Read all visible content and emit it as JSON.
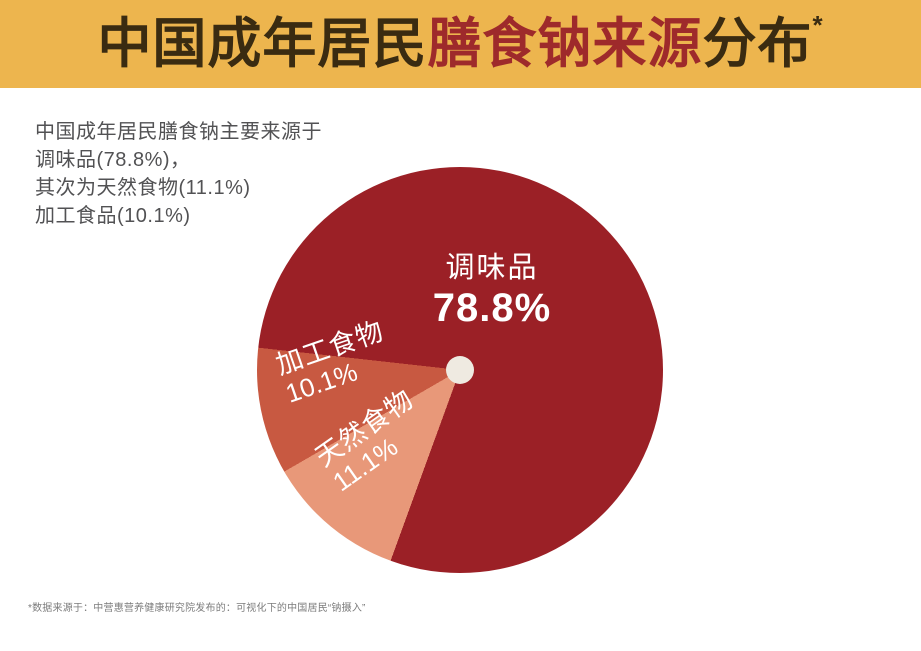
{
  "header": {
    "title_part_dark_1": "中国成年居民",
    "title_part_red": "膳食钠来源",
    "title_part_dark_2": "分布",
    "title_superscript": "*",
    "background_color": "#EDB54E",
    "text_color": "#3A2B11",
    "accent_color": "#9E2A2B"
  },
  "description": {
    "lines": [
      "中国成年居民膳食钠主要来源于",
      "调味品(78.8%)，",
      "其次为天然食物(11.1%)",
      "加工食品(10.1%)"
    ],
    "text_color": "#525254"
  },
  "chart_data": {
    "type": "pie",
    "title": "中国成年居民膳食钠来源分布",
    "start_angle_deg": 200,
    "slices": [
      {
        "label": "天然食物",
        "value": 11.1,
        "display": "11.1%",
        "color": "#E89879"
      },
      {
        "label": "加工食物",
        "value": 10.1,
        "display": "10.1%",
        "color": "#C85941"
      },
      {
        "label": "调味品",
        "value": 78.8,
        "display": "78.8%",
        "color": "#9B2026"
      }
    ],
    "center_dot_color": "#EFEAE1",
    "label_color": "#FFFFFF",
    "legend": "none"
  },
  "footer": {
    "note": "*数据来源于：中营惠营养健康研究院发布的：可视化下的中国居民“钠摄入”",
    "text_color": "#7C7C7C"
  }
}
